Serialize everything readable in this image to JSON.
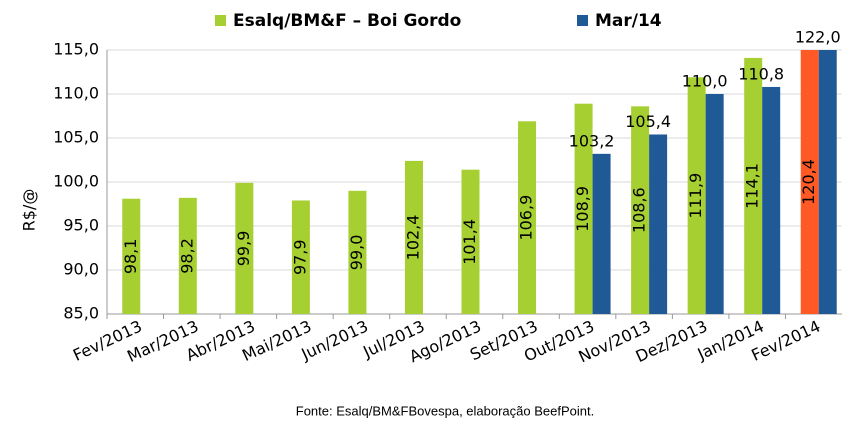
{
  "chart_data": {
    "type": "bar",
    "y_label": "R$/@",
    "source": "Fonte: Esalq/BM&FBovespa, elaboração BeefPoint.",
    "categories": [
      "Fev/2013",
      "Mar/2013",
      "Abr/2013",
      "Mai/2013",
      "Jun/2013",
      "Jul/2013",
      "Ago/2013",
      "Set/2013",
      "Out/2013",
      "Nov/2013",
      "Dez/2013",
      "Jan/2014",
      "Fev/2014"
    ],
    "series": [
      {
        "name": "Esalq/BM&F – Boi Gordo",
        "color": "#a6cf32",
        "point_colors": [
          "#a6cf32",
          "#a6cf32",
          "#a6cf32",
          "#a6cf32",
          "#a6cf32",
          "#a6cf32",
          "#a6cf32",
          "#a6cf32",
          "#a6cf32",
          "#a6cf32",
          "#a6cf32",
          "#a6cf32",
          "#ff5a26"
        ],
        "values": [
          98.1,
          98.2,
          99.9,
          97.9,
          99.0,
          102.4,
          101.4,
          106.9,
          108.9,
          108.6,
          111.9,
          114.1,
          120.4
        ],
        "value_labels": [
          "98,1",
          "98,2",
          "99,9",
          "97,9",
          "99,0",
          "102,4",
          "101,4",
          "106,9",
          "108,9",
          "108,6",
          "111,9",
          "114,1",
          "120,4"
        ]
      },
      {
        "name": "Mar/14",
        "color": "#1f5a96",
        "values": [
          null,
          null,
          null,
          null,
          null,
          null,
          null,
          null,
          103.2,
          105.4,
          110.0,
          110.8,
          122.0
        ],
        "value_labels": [
          null,
          null,
          null,
          null,
          null,
          null,
          null,
          null,
          "103,2",
          "105,4",
          "110,0",
          "110,8",
          "122,0"
        ]
      }
    ],
    "ylim": [
      85,
      115
    ],
    "yticks": [
      {
        "value": 85,
        "label": "85,0"
      },
      {
        "value": 90,
        "label": "90,0"
      },
      {
        "value": 95,
        "label": "95,0"
      },
      {
        "value": 100,
        "label": "100,0"
      },
      {
        "value": 105,
        "label": "105,0"
      },
      {
        "value": 110,
        "label": "110,0"
      },
      {
        "value": 115,
        "label": "115,0"
      }
    ],
    "grid": true,
    "legend": "top"
  }
}
